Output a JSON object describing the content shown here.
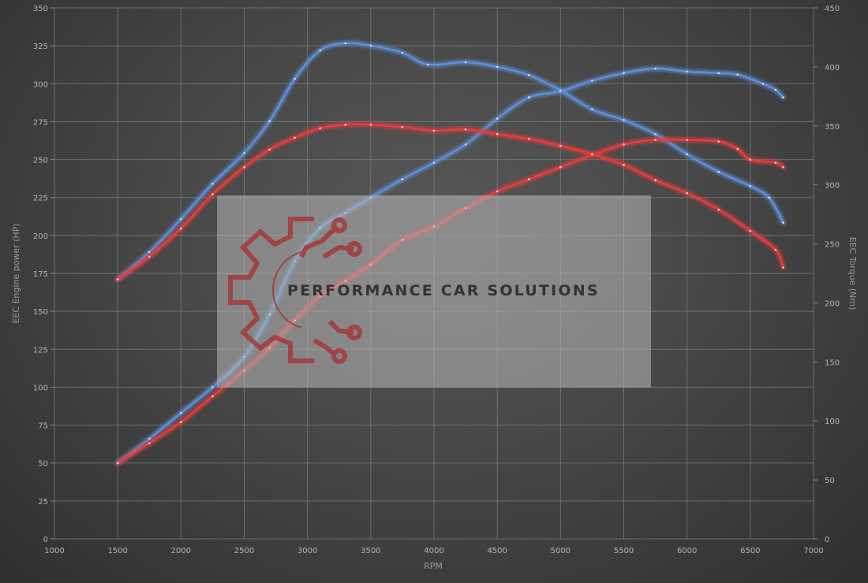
{
  "chart_data": {
    "type": "line",
    "xlabel": "RPM",
    "ylabel_left": "EEC Engine power (HP)",
    "ylabel_right": "EEC Torque (Nm)",
    "xlim": [
      1000,
      7000
    ],
    "ylim_left": [
      0,
      350
    ],
    "ylim_right": [
      0,
      450
    ],
    "x_ticks": [
      1000,
      1500,
      2000,
      2500,
      3000,
      3500,
      4000,
      4500,
      5000,
      5500,
      6000,
      6500,
      7000
    ],
    "y_ticks_left": [
      0,
      25,
      50,
      75,
      100,
      125,
      150,
      175,
      200,
      225,
      250,
      275,
      300,
      325,
      350
    ],
    "y_ticks_right": [
      0,
      50,
      100,
      150,
      200,
      250,
      300,
      350,
      400,
      450
    ],
    "grid": true,
    "legend": "none",
    "series": [
      {
        "axis": "left",
        "color": "#5b8fd6",
        "points": [
          [
            1500,
            50
          ],
          [
            1750,
            66
          ],
          [
            2000,
            83
          ],
          [
            2250,
            100
          ],
          [
            2500,
            120
          ],
          [
            2700,
            148
          ],
          [
            2900,
            183
          ],
          [
            3100,
            205
          ],
          [
            3300,
            215
          ],
          [
            3500,
            225
          ],
          [
            3750,
            237
          ],
          [
            4000,
            248
          ],
          [
            4250,
            260
          ],
          [
            4500,
            277
          ],
          [
            4750,
            291
          ],
          [
            5000,
            295
          ],
          [
            5250,
            302
          ],
          [
            5500,
            307
          ],
          [
            5750,
            310
          ],
          [
            6000,
            308
          ],
          [
            6250,
            307
          ],
          [
            6400,
            306
          ],
          [
            6600,
            300
          ],
          [
            6700,
            296
          ],
          [
            6760,
            291
          ]
        ]
      },
      {
        "axis": "right",
        "color": "#5b8fd6",
        "points": [
          [
            1500,
            220
          ],
          [
            1750,
            243
          ],
          [
            2000,
            271
          ],
          [
            2250,
            301
          ],
          [
            2500,
            327
          ],
          [
            2700,
            354
          ],
          [
            2900,
            390
          ],
          [
            3100,
            414
          ],
          [
            3300,
            420
          ],
          [
            3500,
            418
          ],
          [
            3750,
            412
          ],
          [
            3950,
            402
          ],
          [
            4250,
            404
          ],
          [
            4500,
            400
          ],
          [
            4750,
            393
          ],
          [
            5000,
            380
          ],
          [
            5250,
            364
          ],
          [
            5500,
            355
          ],
          [
            5750,
            343
          ],
          [
            6000,
            326
          ],
          [
            6250,
            311
          ],
          [
            6500,
            299
          ],
          [
            6650,
            289
          ],
          [
            6760,
            268
          ]
        ]
      },
      {
        "axis": "left",
        "color": "#e33d3d",
        "points": [
          [
            1500,
            50
          ],
          [
            1750,
            63
          ],
          [
            2000,
            77
          ],
          [
            2250,
            94
          ],
          [
            2500,
            111
          ],
          [
            2700,
            126
          ],
          [
            2900,
            144
          ],
          [
            3100,
            160
          ],
          [
            3300,
            170
          ],
          [
            3500,
            181
          ],
          [
            3750,
            197
          ],
          [
            4000,
            206
          ],
          [
            4250,
            218
          ],
          [
            4500,
            229
          ],
          [
            4750,
            237
          ],
          [
            5000,
            245
          ],
          [
            5250,
            253
          ],
          [
            5500,
            260
          ],
          [
            5750,
            263
          ],
          [
            6000,
            263
          ],
          [
            6250,
            262
          ],
          [
            6400,
            257
          ],
          [
            6500,
            250
          ],
          [
            6700,
            248
          ],
          [
            6760,
            245
          ]
        ]
      },
      {
        "axis": "right",
        "color": "#e33d3d",
        "points": [
          [
            1500,
            220
          ],
          [
            1750,
            239
          ],
          [
            2000,
            263
          ],
          [
            2250,
            292
          ],
          [
            2500,
            315
          ],
          [
            2700,
            330
          ],
          [
            2900,
            340
          ],
          [
            3100,
            348
          ],
          [
            3300,
            351
          ],
          [
            3500,
            351
          ],
          [
            3750,
            349
          ],
          [
            4000,
            346
          ],
          [
            4250,
            347
          ],
          [
            4500,
            343
          ],
          [
            4750,
            339
          ],
          [
            5000,
            333
          ],
          [
            5250,
            326
          ],
          [
            5500,
            317
          ],
          [
            5750,
            304
          ],
          [
            6000,
            293
          ],
          [
            6250,
            279
          ],
          [
            6500,
            261
          ],
          [
            6700,
            245
          ],
          [
            6760,
            230
          ]
        ]
      }
    ]
  },
  "watermark": {
    "brand": "PERFORMANCE CAR SOLUTIONS",
    "icon": "gear-circuit-logo-icon"
  }
}
